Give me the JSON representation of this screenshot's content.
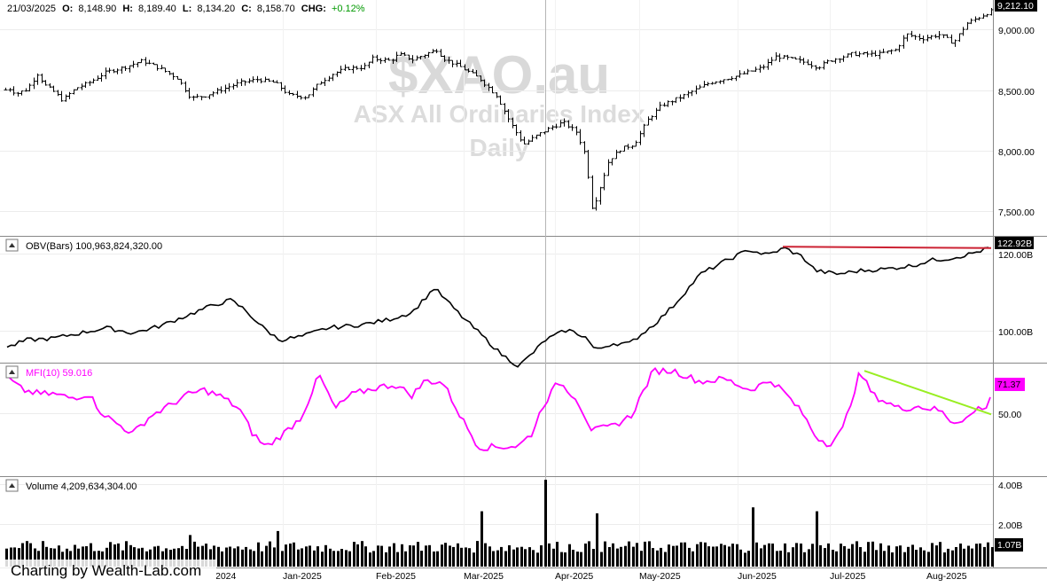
{
  "header": {
    "date": "21/03/2025",
    "open_label": "O:",
    "open": "8,148.90",
    "high_label": "H:",
    "high": "8,189.40",
    "low_label": "L:",
    "low": "8,134.20",
    "close_label": "C:",
    "close": "8,158.70",
    "chg_label": "CHG:",
    "chg": "+0.12%"
  },
  "watermark": {
    "symbol": "$XAO.au",
    "name": "ASX All Ordinaries Index",
    "period": "Daily"
  },
  "panels": {
    "price": {
      "ticks": [
        "9,000.00",
        "8,500.00",
        "8,000.00",
        "7,500.00"
      ],
      "last_value": "9,212.10"
    },
    "obv": {
      "caption": "OBV(Bars) 100,963,824,320.00",
      "ticks": [
        "120.00B",
        "100.00B"
      ],
      "last_value": "122.92B"
    },
    "mfi": {
      "caption": "MFI(10) 59.016",
      "ticks": [
        "50.00"
      ],
      "last_value": "71.37"
    },
    "volume": {
      "caption": "Volume 4,209,634,304.00",
      "ticks": [
        "4.00B",
        "2.00B"
      ],
      "last_value": "1.07B"
    }
  },
  "x_axis": {
    "labels": [
      "2024",
      "Jan-2025",
      "Feb-2025",
      "Mar-2025",
      "Apr-2025",
      "May-2025",
      "Jun-2025",
      "Jul-2025",
      "Aug-2025"
    ]
  },
  "credit": "Charting by Wealth-Lab.com",
  "colors": {
    "price": "#000000",
    "obv": "#000000",
    "mfi": "#ff00ff",
    "volume": "#000000",
    "obv_trendline": "#cc2233",
    "mfi_trendline": "#99ee22",
    "mfi_badge": "#ff00ff",
    "chg_positive": "#009900"
  },
  "chart_data": [
    {
      "type": "ohlc",
      "title": "ASX All Ordinaries Index",
      "ylim": [
        7200,
        9280
      ],
      "x": [
        "2024-12",
        "2025-01",
        "2025-02",
        "2025-03",
        "2025-04",
        "2025-05",
        "2025-06",
        "2025-07",
        "2025-08"
      ],
      "series": [
        {
          "name": "$XAO.au",
          "anchors": [
            [
              0,
              8420
            ],
            [
              8,
              8520
            ],
            [
              18,
              8460
            ],
            [
              30,
              8500
            ],
            [
              42,
              8640
            ],
            [
              50,
              8540
            ],
            [
              60,
              8480
            ],
            [
              70,
              8400
            ],
            [
              85,
              8510
            ],
            [
              100,
              8560
            ],
            [
              120,
              8660
            ],
            [
              140,
              8700
            ],
            [
              160,
              8760
            ],
            [
              180,
              8690
            ],
            [
              200,
              8600
            ],
            [
              215,
              8420
            ],
            [
              230,
              8440
            ],
            [
              250,
              8500
            ],
            [
              270,
              8560
            ],
            [
              290,
              8590
            ],
            [
              310,
              8560
            ],
            [
              325,
              8450
            ],
            [
              345,
              8430
            ],
            [
              360,
              8560
            ],
            [
              375,
              8640
            ],
            [
              390,
              8690
            ],
            [
              410,
              8700
            ],
            [
              420,
              8780
            ],
            [
              440,
              8760
            ],
            [
              450,
              8820
            ],
            [
              465,
              8770
            ],
            [
              480,
              8820
            ],
            [
              492,
              8860
            ],
            [
              500,
              8780
            ],
            [
              520,
              8700
            ],
            [
              540,
              8600
            ],
            [
              560,
              8440
            ],
            [
              575,
              8200
            ],
            [
              590,
              8000
            ],
            [
              605,
              8080
            ],
            [
              620,
              8150
            ],
            [
              635,
              8200
            ],
            [
              650,
              8110
            ],
            [
              660,
              7900
            ],
            [
              668,
              7400
            ],
            [
              676,
              7600
            ],
            [
              686,
              7850
            ],
            [
              700,
              7960
            ],
            [
              715,
              8000
            ],
            [
              730,
              8220
            ],
            [
              745,
              8350
            ],
            [
              770,
              8440
            ],
            [
              800,
              8560
            ],
            [
              830,
              8620
            ],
            [
              860,
              8700
            ],
            [
              875,
              8800
            ],
            [
              890,
              8780
            ],
            [
              910,
              8740
            ],
            [
              922,
              8700
            ],
            [
              935,
              8760
            ],
            [
              960,
              8820
            ],
            [
              990,
              8820
            ],
            [
              1010,
              8860
            ],
            [
              1022,
              9000
            ],
            [
              1040,
              8960
            ],
            [
              1060,
              9000
            ],
            [
              1075,
              8920
            ],
            [
              1090,
              9100
            ],
            [
              1105,
              9160
            ],
            [
              1118,
              9212
            ]
          ]
        }
      ]
    },
    {
      "type": "line",
      "title": "OBV(Bars)",
      "ylim": [
        90,
        125
      ],
      "series": [
        {
          "name": "OBV(Bars)",
          "anchors": [
            [
              10,
              94
            ],
            [
              30,
              96
            ],
            [
              60,
              96.5
            ],
            [
              90,
              98
            ],
            [
              120,
              99.5
            ],
            [
              150,
              98
            ],
            [
              180,
              100
            ],
            [
              210,
              103
            ],
            [
              240,
              106
            ],
            [
              260,
              107.5
            ],
            [
              275,
              105
            ],
            [
              295,
              100
            ],
            [
              315,
              96
            ],
            [
              340,
              97
            ],
            [
              370,
              99.5
            ],
            [
              410,
              100.5
            ],
            [
              440,
              102
            ],
            [
              465,
              104
            ],
            [
              490,
              111
            ],
            [
              520,
              103
            ],
            [
              545,
              97
            ],
            [
              565,
              92
            ],
            [
              585,
              88.5
            ],
            [
              600,
              92
            ],
            [
              615,
              96
            ],
            [
              640,
              99
            ],
            [
              660,
              97
            ],
            [
              672,
              93
            ],
            [
              690,
              95
            ],
            [
              710,
              95
            ],
            [
              740,
              101
            ],
            [
              760,
              106
            ],
            [
              790,
              115
            ],
            [
              820,
              119
            ],
            [
              845,
              122
            ],
            [
              865,
              120.5
            ],
            [
              885,
              122.5
            ],
            [
              905,
              120
            ],
            [
              920,
              116
            ],
            [
              945,
              115
            ],
            [
              970,
              116
            ],
            [
              1000,
              116.5
            ],
            [
              1030,
              117.5
            ],
            [
              1050,
              119
            ],
            [
              1070,
              119.5
            ],
            [
              1090,
              120.5
            ],
            [
              1110,
              122
            ],
            [
              1118,
              122.9
            ]
          ]
        }
      ],
      "annotations": [
        {
          "type": "trendline",
          "from": [
            883,
            122.9
          ],
          "to": [
            1118,
            122.5
          ]
        }
      ]
    },
    {
      "type": "line",
      "title": "MFI(10)",
      "ylim": [
        10,
        90
      ],
      "series": [
        {
          "name": "MFI(10)",
          "anchors": [
            [
              10,
              80
            ],
            [
              25,
              72
            ],
            [
              45,
              69
            ],
            [
              60,
              69
            ],
            [
              80,
              66
            ],
            [
              100,
              69
            ],
            [
              115,
              55
            ],
            [
              130,
              48
            ],
            [
              150,
              40
            ],
            [
              170,
              53
            ],
            [
              190,
              60
            ],
            [
              210,
              68
            ],
            [
              230,
              72
            ],
            [
              250,
              67
            ],
            [
              270,
              58
            ],
            [
              285,
              40
            ],
            [
              300,
              30
            ],
            [
              320,
              40
            ],
            [
              340,
              52
            ],
            [
              360,
              83
            ],
            [
              378,
              58
            ],
            [
              395,
              68
            ],
            [
              420,
              73
            ],
            [
              445,
              76
            ],
            [
              465,
              68
            ],
            [
              480,
              79
            ],
            [
              500,
              77
            ],
            [
              520,
              52
            ],
            [
              540,
              30
            ],
            [
              560,
              30
            ],
            [
              585,
              31
            ],
            [
              600,
              40
            ],
            [
              612,
              60
            ],
            [
              630,
              78
            ],
            [
              650,
              66
            ],
            [
              668,
              42
            ],
            [
              690,
              45
            ],
            [
              712,
              53
            ],
            [
              737,
              86
            ],
            [
              760,
              86
            ],
            [
              790,
              78
            ],
            [
              818,
              80
            ],
            [
              845,
              72
            ],
            [
              870,
              79
            ],
            [
              885,
              70
            ],
            [
              905,
              55
            ],
            [
              920,
              38
            ],
            [
              935,
              32
            ],
            [
              950,
              42
            ],
            [
              970,
              85
            ],
            [
              985,
              68
            ],
            [
              1000,
              63
            ],
            [
              1015,
              58
            ],
            [
              1035,
              60
            ],
            [
              1060,
              57
            ],
            [
              1075,
              48
            ],
            [
              1095,
              53
            ],
            [
              1105,
              60
            ],
            [
              1113,
              57
            ],
            [
              1118,
              71.37
            ]
          ]
        }
      ],
      "annotations": [
        {
          "type": "trendline",
          "from": [
            975,
            86
          ],
          "to": [
            1118,
            54
          ]
        }
      ]
    },
    {
      "type": "bar",
      "title": "Volume",
      "ylim": [
        0,
        4.4
      ],
      "series": [
        {
          "name": "Volume",
          "baseline": 1.0,
          "spikes": [
            [
              215,
              1.6
            ],
            [
              310,
              1.8
            ],
            [
              540,
              2.8
            ],
            [
              613,
              4.4
            ],
            [
              670,
              2.7
            ],
            [
              848,
              3.0
            ],
            [
              918,
              2.8
            ]
          ]
        }
      ]
    }
  ]
}
